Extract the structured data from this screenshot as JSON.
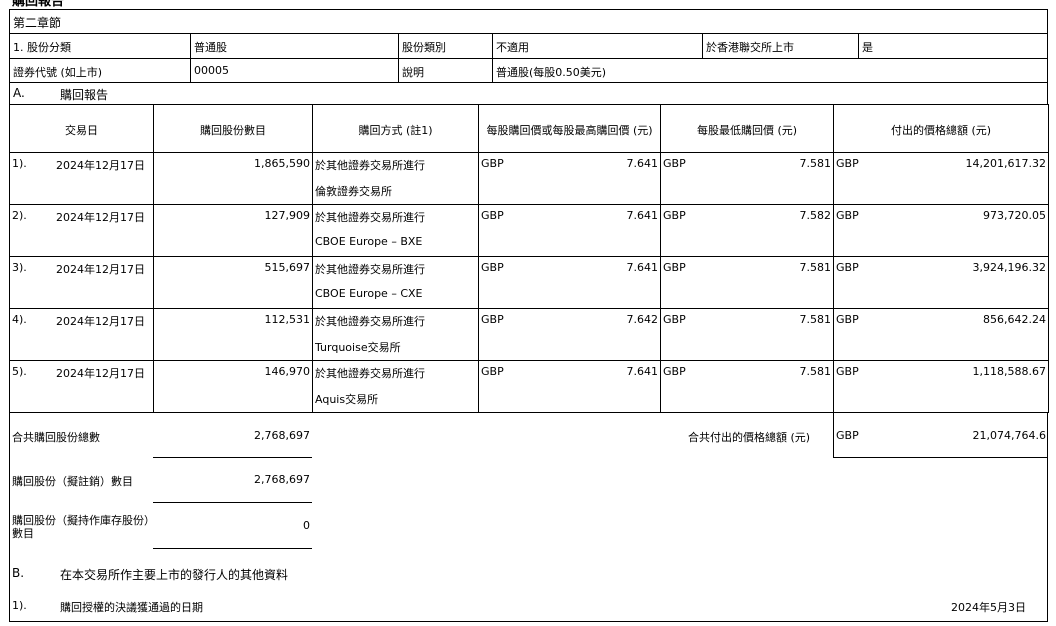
{
  "page_header": "購回報告",
  "section": "第二章節",
  "info": {
    "class_label": "1. 股份分類",
    "class_value": "普通股",
    "type_label": "股份類別",
    "type_value": "不適用",
    "listed_label": "於香港聯交所上市",
    "listed_value": "是",
    "code_label": "證券代號 (如上市)",
    "code_value": "00005",
    "desc_label": "說明",
    "desc_value": "普通股(每股0.50美元)"
  },
  "part_a": {
    "letter": "A.",
    "title": "購回報告"
  },
  "columns": [
    "交易日",
    "購回股份數目",
    "購回方式 (註1)",
    "每股購回價或每股最高購回價 (元)",
    "每股最低購回價 (元)",
    "付出的價格總額 (元)"
  ],
  "rows": [
    {
      "no": "1).",
      "date": "2024年12月17日",
      "shares": "1,865,590",
      "method1": "於其他證券交易所進行",
      "method2": "倫敦證券交易所",
      "cur1": "GBP",
      "high": "7.641",
      "cur2": "GBP",
      "low": "7.581",
      "cur3": "GBP",
      "total": "14,201,617.32"
    },
    {
      "no": "2).",
      "date": "2024年12月17日",
      "shares": "127,909",
      "method1": "於其他證券交易所進行",
      "method2": "CBOE Europe – BXE",
      "cur1": "GBP",
      "high": "7.641",
      "cur2": "GBP",
      "low": "7.582",
      "cur3": "GBP",
      "total": "973,720.05"
    },
    {
      "no": "3).",
      "date": "2024年12月17日",
      "shares": "515,697",
      "method1": "於其他證券交易所進行",
      "method2": "CBOE Europe – CXE",
      "cur1": "GBP",
      "high": "7.641",
      "cur2": "GBP",
      "low": "7.581",
      "cur3": "GBP",
      "total": "3,924,196.32"
    },
    {
      "no": "4).",
      "date": "2024年12月17日",
      "shares": "112,531",
      "method1": "於其他證券交易所進行",
      "method2": "Turquoise交易所",
      "cur1": "GBP",
      "high": "7.642",
      "cur2": "GBP",
      "low": "7.581",
      "cur3": "GBP",
      "total": "856,642.24"
    },
    {
      "no": "5).",
      "date": "2024年12月17日",
      "shares": "146,970",
      "method1": "於其他證券交易所進行",
      "method2": "Aquis交易所",
      "cur1": "GBP",
      "high": "7.641",
      "cur2": "GBP",
      "low": "7.581",
      "cur3": "GBP",
      "total": "1,118,588.67"
    }
  ],
  "summary": {
    "total_shares_label": "合共購回股份總數",
    "total_shares": "2,768,697",
    "total_paid_label": "合共付出的價格總額 (元)",
    "total_paid_cur": "GBP",
    "total_paid": "21,074,764.6",
    "cancel_label": "購回股份（擬註銷）數目",
    "cancel_value": "2,768,697",
    "treasury_label1": "購回股份（擬持作庫存股份）",
    "treasury_label2": "數目",
    "treasury_value": "0"
  },
  "part_b": {
    "letter": "B.",
    "title": "在本交易所作主要上市的發行人的其他資料",
    "item_no": "1).",
    "item_label": "購回授權的決議獲通過的日期",
    "item_value": "2024年5月3日"
  }
}
